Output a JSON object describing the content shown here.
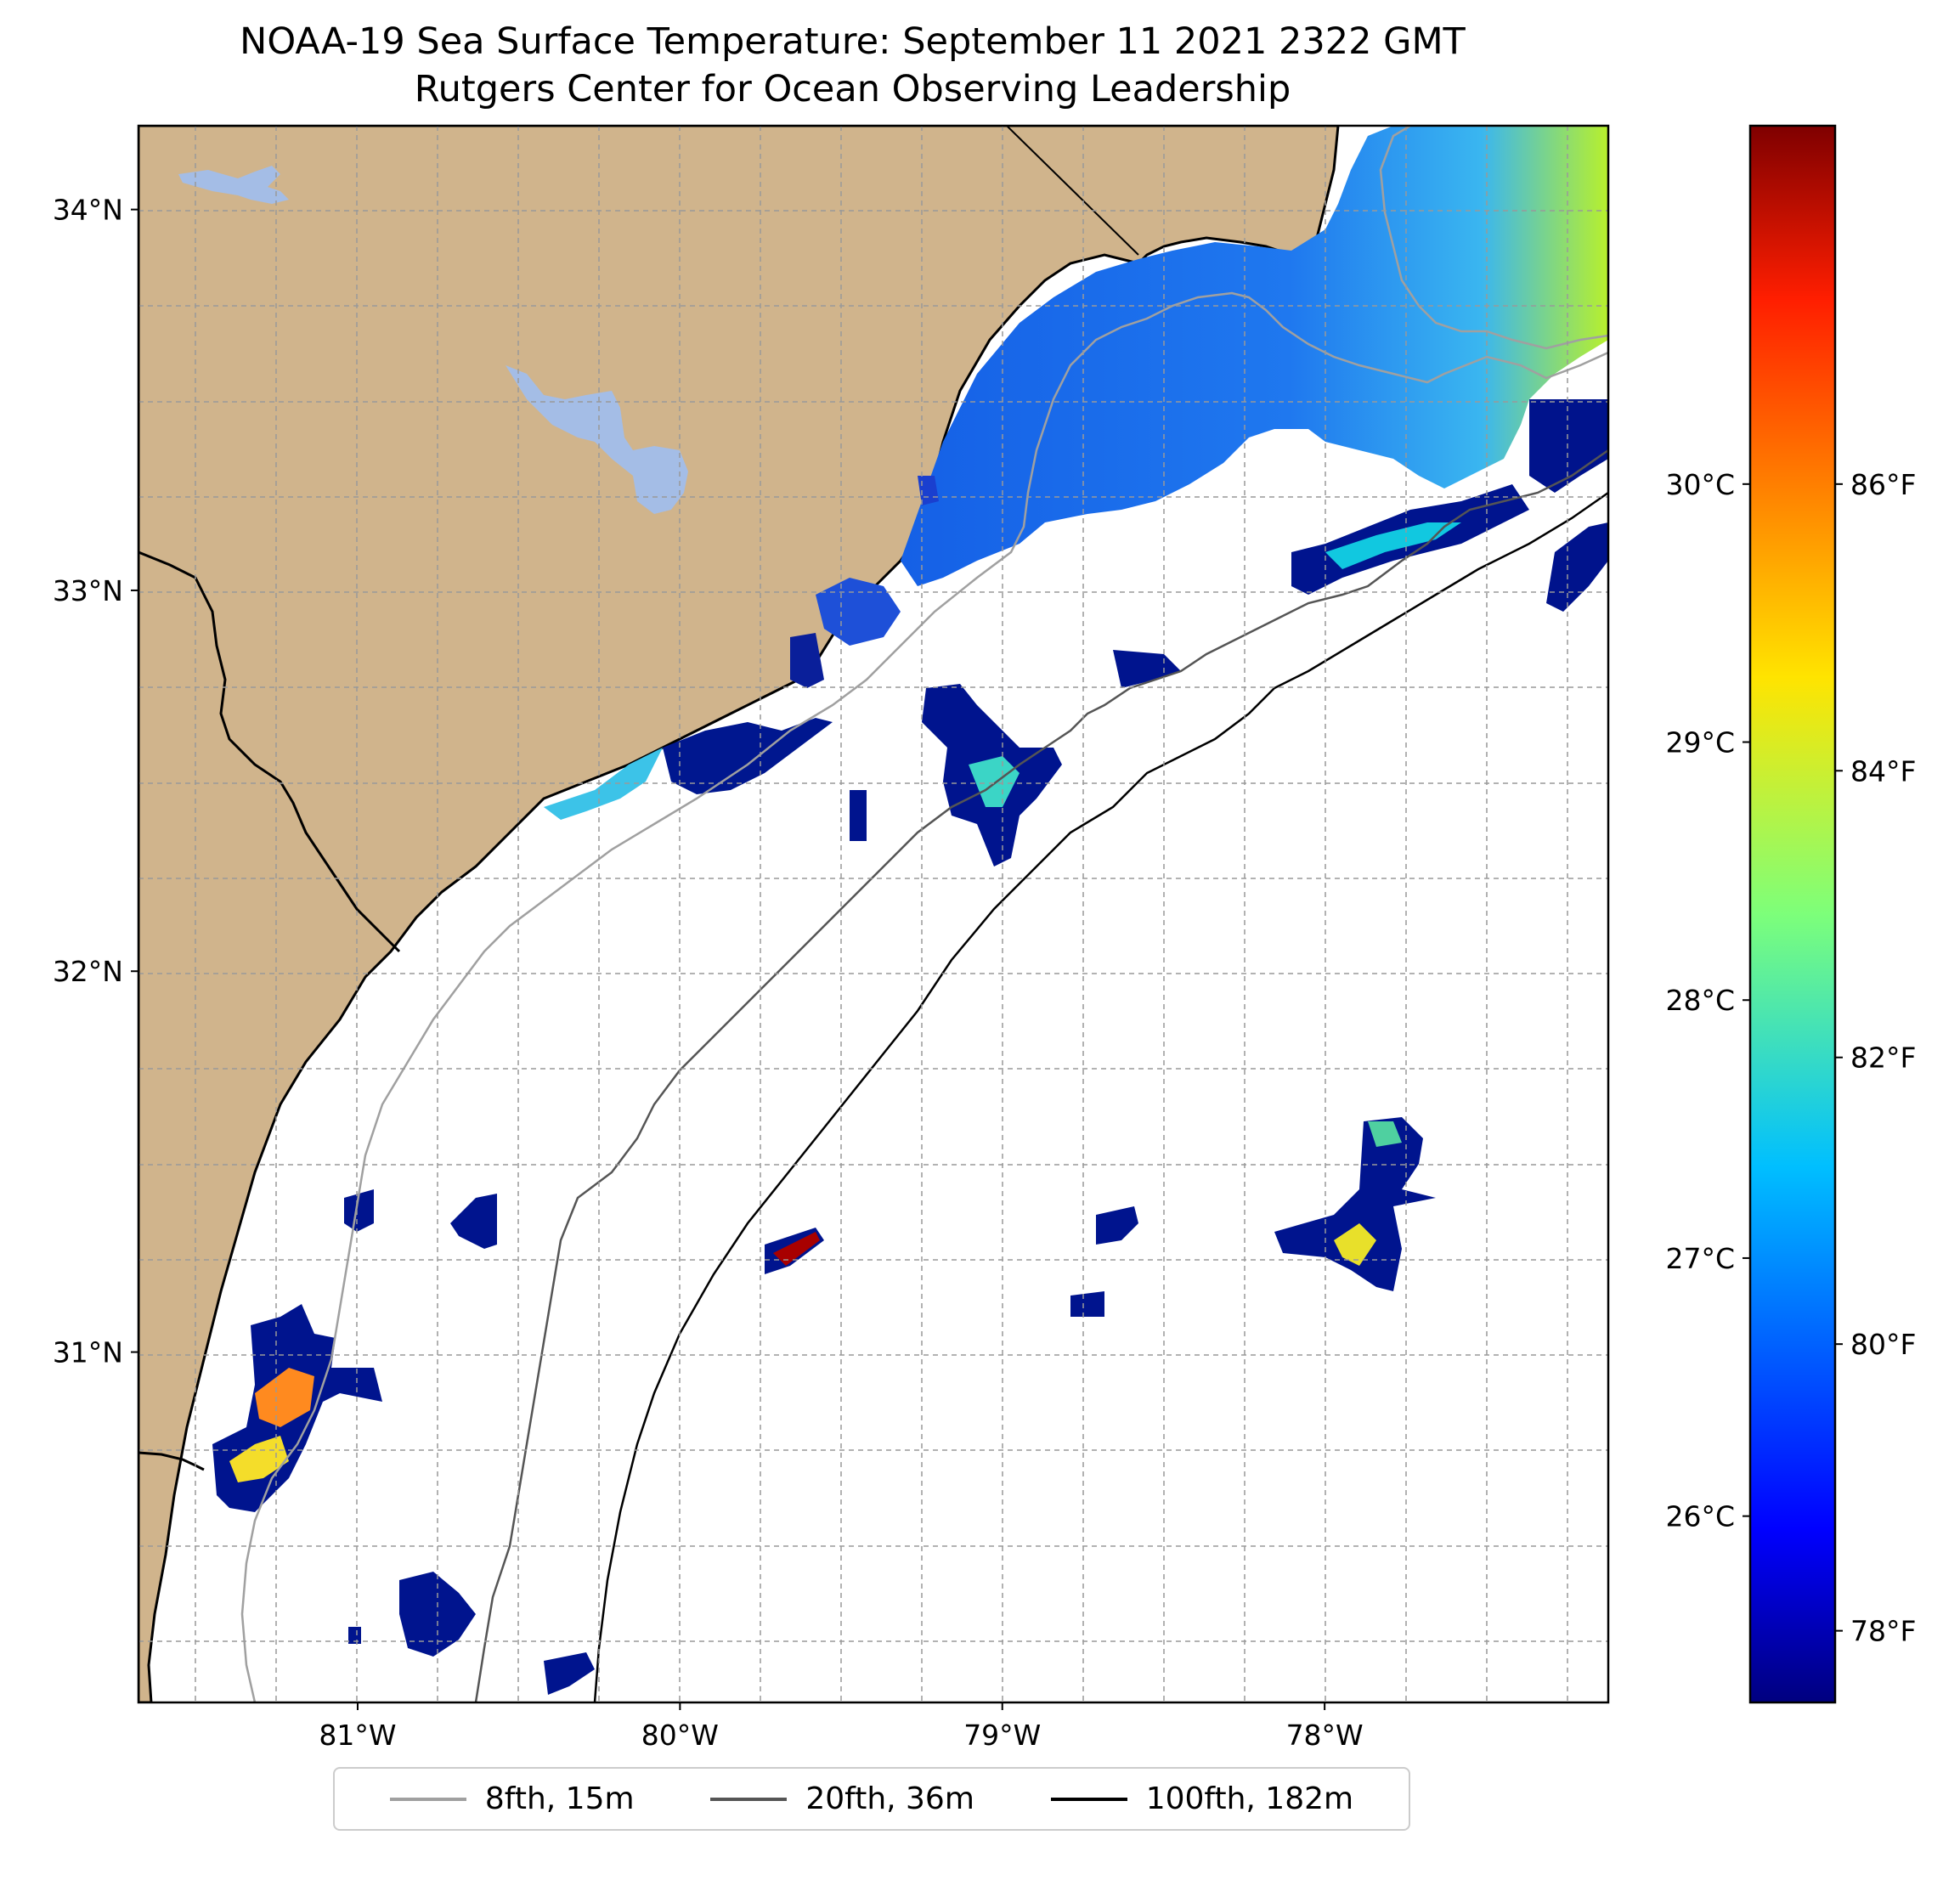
{
  "title": {
    "line1": "NOAA-19 Sea Surface Temperature: September 11 2021 2322 GMT",
    "line2": "Rutgers Center for Ocean Observing Leadership"
  },
  "map": {
    "extent": {
      "lon_min": -81.68,
      "lon_max": -77.12,
      "lat_min": 30.08,
      "lat_max": 34.22
    },
    "lat_ticks": [
      {
        "value": 34,
        "label": "34°N"
      },
      {
        "value": 33,
        "label": "33°N"
      },
      {
        "value": 32,
        "label": "32°N"
      },
      {
        "value": 31,
        "label": "31°N"
      }
    ],
    "lon_ticks": [
      {
        "value": -81,
        "label": "81°W"
      },
      {
        "value": -80,
        "label": "80°W"
      },
      {
        "value": -79,
        "label": "79°W"
      },
      {
        "value": -78,
        "label": "78°W"
      }
    ],
    "gridlines": "dashed",
    "land_color": "#d0b48c",
    "water_body_color": "#a4bde6",
    "background": "#ffffff"
  },
  "colorbar": {
    "colormap": "jet",
    "celsius_ticks": [
      {
        "value": 26,
        "label": "26°C"
      },
      {
        "value": 27,
        "label": "27°C"
      },
      {
        "value": 28,
        "label": "28°C"
      },
      {
        "value": 29,
        "label": "29°C"
      },
      {
        "value": 30,
        "label": "30°C"
      }
    ],
    "fahrenheit_ticks": [
      {
        "value": 78,
        "label": "78°F"
      },
      {
        "value": 80,
        "label": "80°F"
      },
      {
        "value": 82,
        "label": "82°F"
      },
      {
        "value": 84,
        "label": "84°F"
      },
      {
        "value": 86,
        "label": "86°F"
      }
    ],
    "range_f": [
      77.5,
      88.5
    ]
  },
  "legend": {
    "items": [
      {
        "label": "8fth, 15m",
        "color": "#a0a0a0"
      },
      {
        "label": "20fth, 36m",
        "color": "#555555"
      },
      {
        "label": "100fth, 182m",
        "color": "#000000"
      }
    ]
  }
}
